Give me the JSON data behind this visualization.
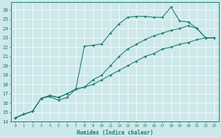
{
  "xlabel": "Humidex (Indice chaleur)",
  "bg_color": "#cde8ea",
  "line_color": "#1a7a6e",
  "xlim": [
    -0.5,
    23.5
  ],
  "ylim": [
    14,
    26.8
  ],
  "yticks": [
    14,
    15,
    16,
    17,
    18,
    19,
    20,
    21,
    22,
    23,
    24,
    25,
    26
  ],
  "xticks": [
    0,
    1,
    2,
    3,
    4,
    5,
    6,
    7,
    8,
    9,
    10,
    11,
    12,
    13,
    14,
    15,
    16,
    17,
    18,
    19,
    20,
    21,
    22,
    23
  ],
  "series1": [
    [
      0,
      14.4
    ],
    [
      1,
      14.8
    ],
    [
      2,
      15.1
    ],
    [
      3,
      16.5
    ],
    [
      4,
      16.7
    ],
    [
      5,
      16.3
    ],
    [
      6,
      16.6
    ],
    [
      7,
      17.5
    ],
    [
      8,
      22.1
    ],
    [
      9,
      22.2
    ],
    [
      10,
      22.35
    ],
    [
      11,
      23.5
    ],
    [
      12,
      24.5
    ],
    [
      13,
      25.2
    ],
    [
      14,
      25.3
    ],
    [
      15,
      25.3
    ],
    [
      16,
      25.2
    ],
    [
      17,
      25.2
    ],
    [
      18,
      26.3
    ],
    [
      19,
      24.8
    ],
    [
      20,
      24.7
    ],
    [
      21,
      24.0
    ],
    [
      22,
      23.0
    ],
    [
      23,
      23.0
    ]
  ],
  "series2": [
    [
      0,
      14.4
    ],
    [
      1,
      14.8
    ],
    [
      2,
      15.1
    ],
    [
      3,
      16.5
    ],
    [
      4,
      16.8
    ],
    [
      5,
      16.6
    ],
    [
      6,
      17.0
    ],
    [
      7,
      17.5
    ],
    [
      8,
      17.7
    ],
    [
      9,
      18.5
    ],
    [
      10,
      19.0
    ],
    [
      11,
      20.0
    ],
    [
      12,
      21.0
    ],
    [
      13,
      21.8
    ],
    [
      14,
      22.3
    ],
    [
      15,
      22.8
    ],
    [
      16,
      23.2
    ],
    [
      17,
      23.5
    ],
    [
      18,
      23.8
    ],
    [
      19,
      24.0
    ],
    [
      20,
      24.3
    ],
    [
      21,
      24.0
    ],
    [
      22,
      23.0
    ],
    [
      23,
      23.0
    ]
  ],
  "series3": [
    [
      0,
      14.4
    ],
    [
      1,
      14.8
    ],
    [
      2,
      15.1
    ],
    [
      3,
      16.5
    ],
    [
      4,
      16.8
    ],
    [
      5,
      16.6
    ],
    [
      6,
      17.0
    ],
    [
      7,
      17.5
    ],
    [
      8,
      17.7
    ],
    [
      9,
      18.0
    ],
    [
      10,
      18.5
    ],
    [
      11,
      19.0
    ],
    [
      12,
      19.5
    ],
    [
      13,
      20.0
    ],
    [
      14,
      20.5
    ],
    [
      15,
      21.0
    ],
    [
      16,
      21.3
    ],
    [
      17,
      21.8
    ],
    [
      18,
      22.0
    ],
    [
      19,
      22.3
    ],
    [
      20,
      22.5
    ],
    [
      21,
      22.8
    ],
    [
      22,
      23.0
    ],
    [
      23,
      23.0
    ]
  ]
}
